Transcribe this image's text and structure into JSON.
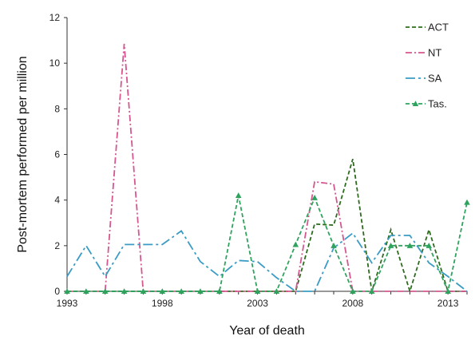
{
  "chart_data": {
    "type": "line",
    "xlabel": "Year of death",
    "ylabel": "Post-mortem performed per million",
    "xlim": [
      1993,
      2014
    ],
    "ylim": [
      0,
      12
    ],
    "x_ticks": [
      1993,
      1998,
      2003,
      2008,
      2013
    ],
    "y_ticks": [
      0,
      2,
      4,
      6,
      8,
      10,
      12
    ],
    "grid": false,
    "legend_position": "top-right",
    "x": [
      1993,
      1994,
      1995,
      1996,
      1997,
      1998,
      1999,
      2000,
      2001,
      2002,
      2003,
      2004,
      2005,
      2006,
      2007,
      2008,
      2009,
      2010,
      2011,
      2012,
      2013,
      2014
    ],
    "series": [
      {
        "name": "ACT",
        "color": "#2e6b1f",
        "line_style": "dashed",
        "marker": "none",
        "values": [
          0,
          0,
          0,
          0,
          0,
          0,
          0,
          0,
          0,
          0,
          0,
          0,
          0,
          2.95,
          2.9,
          5.8,
          0,
          2.7,
          0,
          2.7,
          0,
          0
        ]
      },
      {
        "name": "NT",
        "color": "#d4578f",
        "line_style": "dash-dot",
        "marker": "none",
        "values": [
          0,
          0,
          0,
          10.85,
          0,
          0,
          0,
          0,
          0,
          0,
          0,
          0,
          0,
          4.8,
          4.7,
          0,
          0,
          0,
          0,
          0,
          0,
          0
        ]
      },
      {
        "name": "SA",
        "color": "#3a9cc4",
        "line_style": "long-dash-dot",
        "marker": "none",
        "values": [
          0.65,
          2.0,
          0.65,
          2.05,
          2.05,
          2.05,
          2.65,
          1.3,
          0.65,
          1.35,
          1.3,
          0.6,
          0,
          0,
          1.9,
          2.55,
          1.25,
          2.45,
          2.45,
          1.25,
          0.65,
          0
        ]
      },
      {
        "name": "Tas.",
        "color": "#2fa35e",
        "line_style": "dashed",
        "marker": "triangle",
        "values": [
          0,
          0,
          0,
          0,
          0,
          0,
          0,
          0,
          0,
          4.2,
          0,
          0,
          2.05,
          4.1,
          2.0,
          0,
          0,
          2.0,
          2.0,
          2.0,
          0,
          3.9
        ]
      }
    ]
  }
}
